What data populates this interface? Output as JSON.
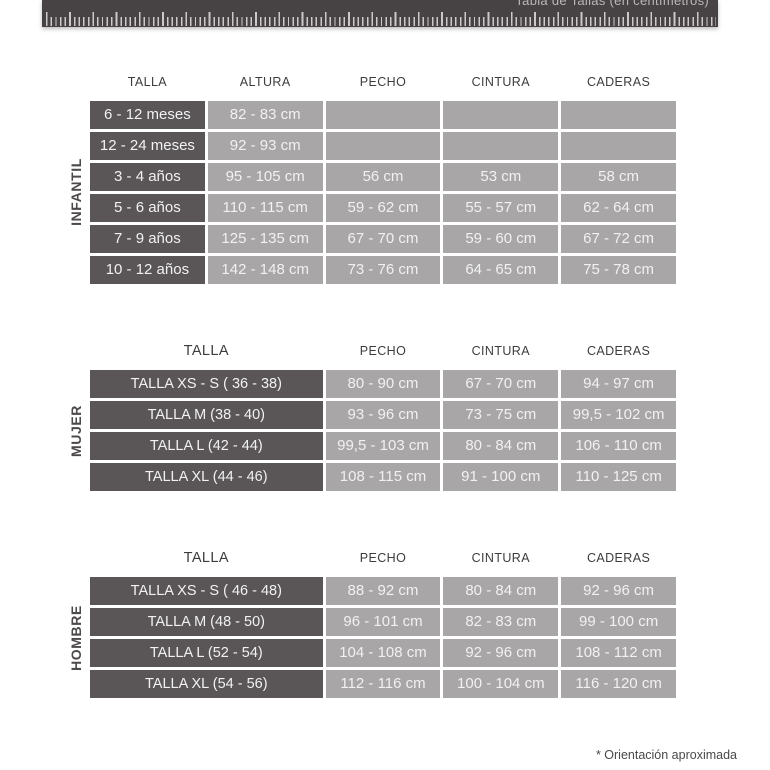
{
  "header": {
    "title": "Tabla de Tallas (en centímetros)"
  },
  "colors": {
    "ruler_bar": "#474344",
    "size_cell_dark": "#5a5657",
    "measure_cell_gray": "#a8a6a7",
    "cell_text": "#f2f1f1"
  },
  "sections": [
    {
      "label": "INFANTIL",
      "columns": [
        "TALLA",
        "ALTURA",
        "PECHO",
        "CINTURA",
        "CADERAS"
      ],
      "rows": [
        [
          "6 - 12 meses",
          "82 - 83 cm",
          "",
          "",
          ""
        ],
        [
          "12 - 24 meses",
          "92 - 93 cm",
          "",
          "",
          ""
        ],
        [
          "3 - 4 años",
          "95 - 105 cm",
          "56 cm",
          "53 cm",
          "58 cm"
        ],
        [
          "5 - 6 años",
          "110 - 115 cm",
          "59 - 62 cm",
          "55 - 57 cm",
          "62 - 64 cm"
        ],
        [
          "7 - 9 años",
          "125 - 135 cm",
          "67 - 70 cm",
          "59 - 60 cm",
          "67 - 72 cm"
        ],
        [
          "10 - 12 años",
          "142 - 148 cm",
          "73 - 76 cm",
          "64 - 65 cm",
          "75 - 78 cm"
        ]
      ]
    },
    {
      "label": "MUJER",
      "columns": [
        "TALLA",
        "PECHO",
        "CINTURA",
        "CADERAS"
      ],
      "rows": [
        [
          "TALLA XS - S ( 36 - 38)",
          "80 - 90 cm",
          "67 - 70 cm",
          "94 - 97 cm"
        ],
        [
          "TALLA M (38 - 40)",
          "93 - 96 cm",
          "73 - 75 cm",
          "99,5 - 102 cm"
        ],
        [
          "TALLA L (42 - 44)",
          "99,5 - 103 cm",
          "80 - 84 cm",
          "106 - 110 cm"
        ],
        [
          "TALLA XL (44 - 46)",
          "108 - 115 cm",
          "91 - 100 cm",
          "110 - 125 cm"
        ]
      ]
    },
    {
      "label": "HOMBRE",
      "columns": [
        "TALLA",
        "PECHO",
        "CINTURA",
        "CADERAS"
      ],
      "rows": [
        [
          "TALLA XS - S ( 46 - 48)",
          "88 - 92 cm",
          "80 - 84 cm",
          "92 - 96 cm"
        ],
        [
          "TALLA M (48 - 50)",
          "96 - 101 cm",
          "82 - 83 cm",
          "99 - 100 cm"
        ],
        [
          "TALLA L (52 - 54)",
          "104 - 108 cm",
          "92 - 96 cm",
          "108 - 112 cm"
        ],
        [
          "TALLA XL (54 - 56)",
          "112 - 116 cm",
          "100 - 104 cm",
          "116 - 120 cm"
        ]
      ]
    }
  ],
  "footnote": "* Orientación aproximada"
}
